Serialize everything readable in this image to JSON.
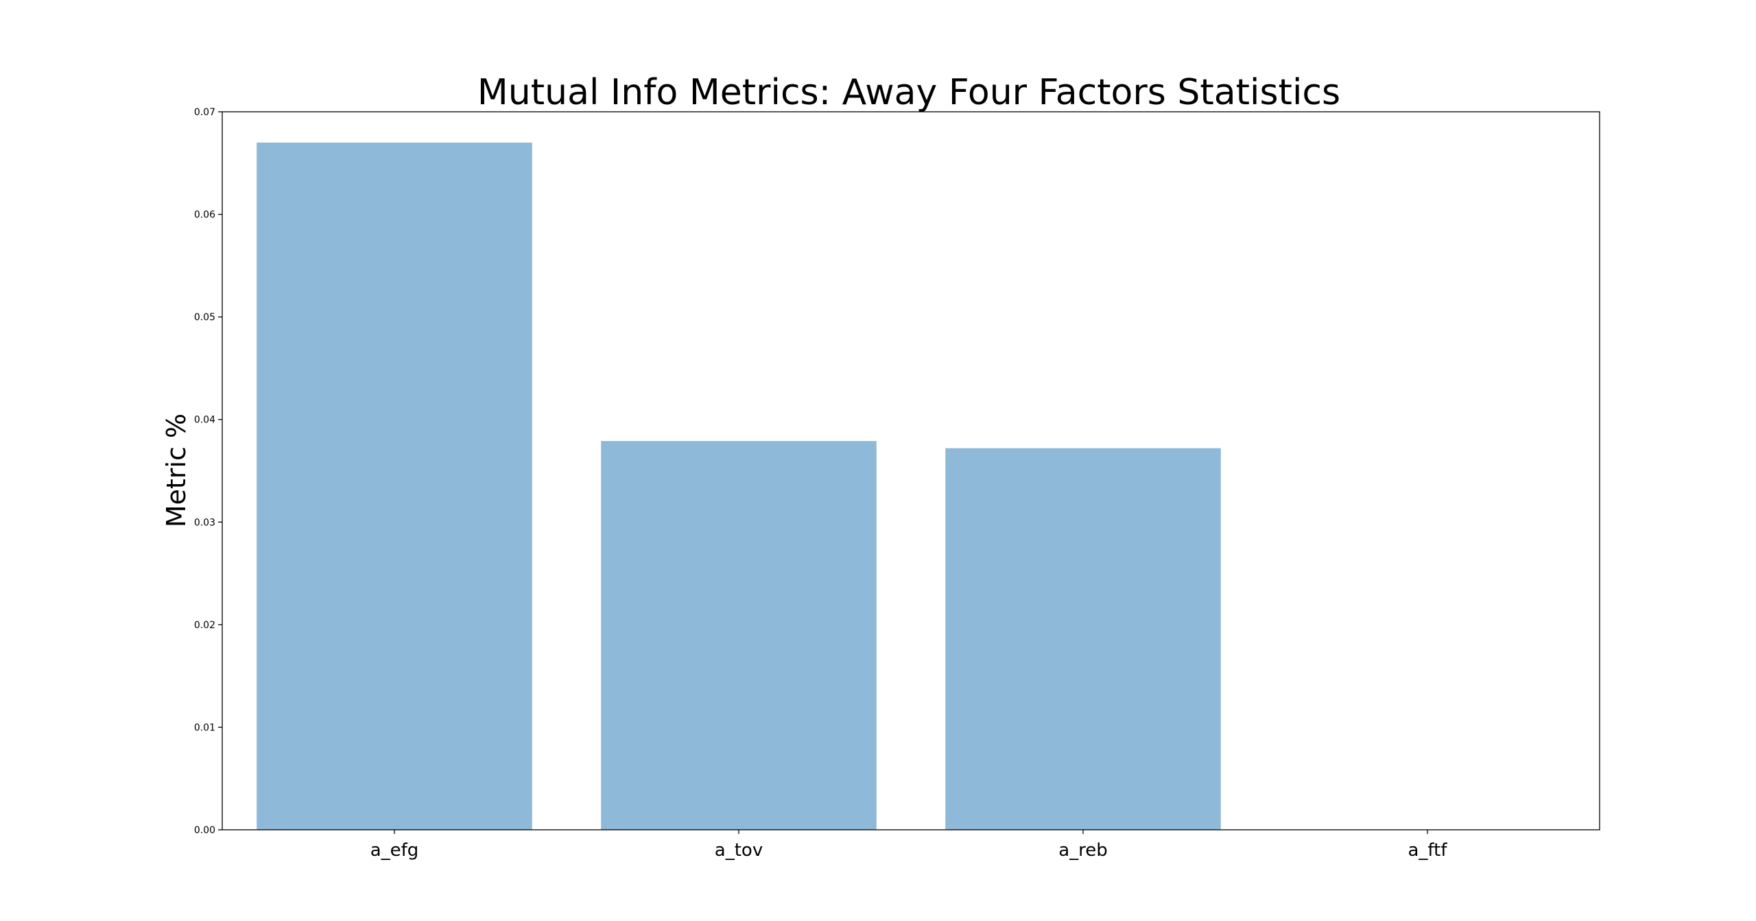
{
  "chart_data": {
    "type": "bar",
    "title": "Mutual Info Metrics: Away Four Factors Statistics",
    "xlabel": "",
    "ylabel": "Metric %",
    "categories": [
      "a_efg",
      "a_tov",
      "a_reb",
      "a_ftf"
    ],
    "values": [
      0.067,
      0.0379,
      0.0372,
      0.0
    ],
    "ylim": [
      0.0,
      0.07
    ],
    "yticks": [
      "0.00",
      "0.01",
      "0.02",
      "0.03",
      "0.04",
      "0.05",
      "0.06",
      "0.07"
    ],
    "bar_color": "#8EB9D9",
    "grid": false,
    "legend": "none"
  }
}
